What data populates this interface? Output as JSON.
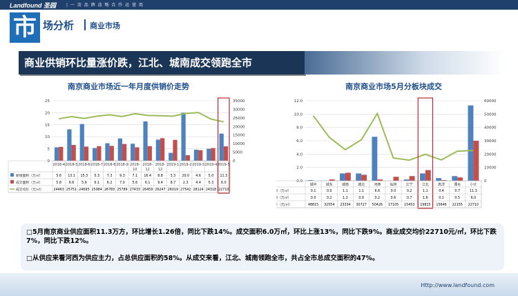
{
  "header": {
    "logo": "Landfound 圣园",
    "slogan": "| 一 流 品 牌 战 略 合 作 运 营 商",
    "big_char": "市",
    "title": "场分析",
    "subtitle": "商业市场"
  },
  "banner": "商业供销环比量涨价跌，江北、城南成交领跑全市",
  "summary": {
    "p1": "□5月南京商业供应面积11.3万方，环比增长1.26倍，同比下跌14%。成交面积6.0万㎡，环比上涨13%，同比下跌9%。商业成交均价22710元/㎡，环比下跌7%，同比下跌12%。",
    "p2": "□从供应来看河西为供应主力，占总供应面积的58%。从成交来看，江北、城南领跑全市，共占全市总成交面积的47%。"
  },
  "footer": {
    "url": "Http://www.landfound.com"
  },
  "colors": {
    "supply": "#4f81bd",
    "deal": "#c0504d",
    "price": "#9bbb59",
    "highlight": "#c0272d"
  },
  "chart_data": [
    {
      "type": "bar",
      "title": "南京商业市场近一年月度供销价走势",
      "categories": [
        "2018-4",
        "2018-5",
        "2018-6",
        "2018-7",
        "2018-8",
        "2018-9",
        "2018-10",
        "2018-11",
        "2018-12",
        "2019-1",
        "2019-2",
        "2019-3",
        "2019-4",
        "2019-5"
      ],
      "tick_rows": [
        [
          "2018-4"
        ],
        [
          "2018-5"
        ],
        [
          "2018-6"
        ],
        [
          "2018-7"
        ],
        [
          "2018-8"
        ],
        [
          "2018-9"
        ],
        [
          "2018-",
          "10"
        ],
        [
          "2018-",
          "11"
        ],
        [
          "2018-",
          "12"
        ],
        [
          "2019-1"
        ],
        [
          "2019-2"
        ],
        [
          "2019-3"
        ],
        [
          "2019-4"
        ],
        [
          "2019-5"
        ]
      ],
      "series": [
        {
          "name": "新增面积（万㎡）",
          "type": "bar",
          "axis": "left",
          "values": [
            5.6,
            13.1,
            15.3,
            5.3,
            7.3,
            9.3,
            7.1,
            16.4,
            8.8,
            3.3,
            20.0,
            4.6,
            5.0,
            11.3
          ]
        },
        {
          "name": "成交面积（万㎡）",
          "type": "bar",
          "axis": "left",
          "values": [
            5.8,
            6.6,
            5.9,
            6.1,
            6.2,
            7.0,
            5.6,
            6.1,
            9.4,
            8.7,
            2.3,
            4.4,
            5.3,
            6.0
          ]
        },
        {
          "name": "成交均价（元/㎡）",
          "type": "line",
          "axis": "right",
          "values": [
            24463,
            25751,
            24695,
            25984,
            26783,
            25789,
            27433,
            26459,
            26247,
            26019,
            27542,
            28124,
            24318,
            22710
          ]
        }
      ],
      "ylim_left": [
        0,
        25
      ],
      "yticks_left": [
        0,
        5,
        10,
        15,
        20,
        25
      ],
      "ylim_right": [
        0,
        35000
      ],
      "yticks_right": [
        0,
        5000,
        10000,
        15000,
        20000,
        25000,
        30000,
        35000
      ],
      "highlight": "2019-5",
      "legend": "table-bottom"
    },
    {
      "type": "bar",
      "title": "南京商业市场5月分板块成交",
      "categories": [
        "城中",
        "城东",
        "城南",
        "城北",
        "河西",
        "仙林",
        "江宁",
        "江北",
        "高淳",
        "溧水",
        "小计"
      ],
      "series": [
        {
          "name": "新增面积（万㎡）",
          "type": "bar",
          "axis": "left",
          "values": [
            0.1,
            0.0,
            1.1,
            1.1,
            6.6,
            0.0,
            0.2,
            1.1,
            0.4,
            0.7,
            11.3
          ]
        },
        {
          "name": "成交面积（万㎡）",
          "type": "bar",
          "axis": "left",
          "values": [
            0.0,
            0.2,
            1.2,
            0.9,
            0.2,
            0.6,
            0.7,
            1.6,
            0.1,
            0.5,
            6.0
          ]
        },
        {
          "name": "成交均价（元/㎡）",
          "type": "line",
          "axis": "right",
          "values": [
            48815,
            32554,
            23334,
            30727,
            50426,
            17105,
            15453,
            19815,
            15646,
            22155,
            22710
          ]
        }
      ],
      "ylim_left": [
        0,
        12
      ],
      "yticks_left": [
        "0.0",
        "2.0",
        "4.0",
        "6.0",
        "8.0",
        "10.0",
        "12.0"
      ],
      "ylim_right": [
        0,
        60000
      ],
      "yticks_right": [
        0,
        10000,
        20000,
        30000,
        40000,
        50000,
        60000
      ],
      "highlight": "江北",
      "legend": "table-bottom"
    }
  ]
}
